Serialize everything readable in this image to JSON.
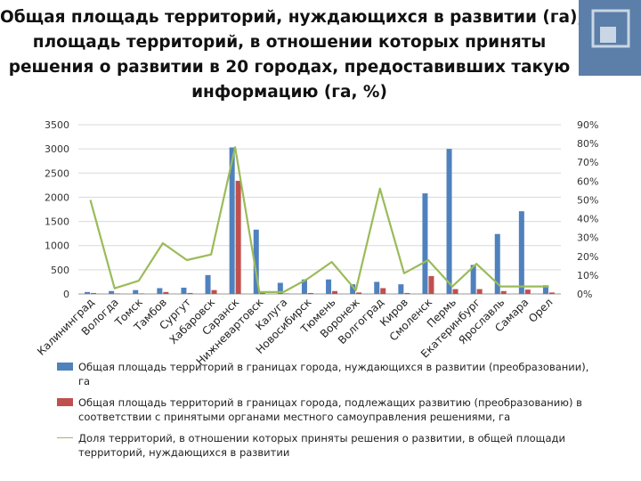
{
  "title_lines": [
    "Общая площадь территорий, нуждающихся в развитии (га),",
    "площадь территорий, в отношении которых приняты",
    "решения о развитии в 20 городах, предоставивших такую",
    "информацию (га, %)"
  ],
  "colors": {
    "deco": "#5b7fa8",
    "series1": "#4f81bd",
    "series2": "#c0504d",
    "series3": "#9bbb59"
  },
  "chart_data": {
    "type": "bar",
    "categories": [
      "Калининград",
      "Вологда",
      "Томск",
      "Тамбов",
      "Сургут",
      "Хабаровск",
      "Саранск",
      "Нижневартовск",
      "Калуга",
      "Новосибирск",
      "Тюмень",
      "Воронеж",
      "Волгоград",
      "Киров",
      "Смоленск",
      "Пермь",
      "Екатеринбург",
      "Ярославль",
      "Самара",
      "Орел"
    ],
    "series": [
      {
        "name": "Общая площадь территорий в границах города, нуждающихся в развитии (преобразовании), га",
        "type": "bar",
        "axis": "left",
        "values": [
          40,
          60,
          80,
          120,
          130,
          390,
          3030,
          1330,
          230,
          300,
          300,
          200,
          250,
          200,
          2080,
          3000,
          600,
          1240,
          1710,
          180
        ]
      },
      {
        "name": "Общая площадь территорий в границах города, подлежащих развитию (преобразованию) в соответствии с принятыми органами местного самоуправления решениями, га",
        "type": "bar",
        "axis": "left",
        "values": [
          20,
          10,
          10,
          40,
          20,
          80,
          2340,
          30,
          10,
          20,
          60,
          30,
          120,
          20,
          370,
          100,
          100,
          60,
          90,
          30
        ]
      },
      {
        "name": "Доля территорий, в отношении которых приняты решения о развитии, в общей площади территорий, нуждающихся в развитии",
        "type": "line",
        "axis": "right",
        "values": [
          50,
          3,
          7,
          27,
          18,
          21,
          78,
          1,
          1,
          8,
          17,
          2,
          56,
          11,
          18,
          4,
          16,
          4,
          4,
          4
        ]
      }
    ],
    "y_left": {
      "min": 0,
      "max": 3500,
      "ticks": [
        "0",
        "500",
        "1000",
        "1500",
        "2000",
        "2500",
        "3000",
        "3500"
      ]
    },
    "y_right": {
      "min": 0,
      "max": 90,
      "ticks": [
        "0%",
        "10%",
        "20%",
        "30%",
        "40%",
        "50%",
        "60%",
        "70%",
        "80%",
        "90%"
      ]
    },
    "legend_position": "bottom",
    "grid": "horizontal"
  }
}
